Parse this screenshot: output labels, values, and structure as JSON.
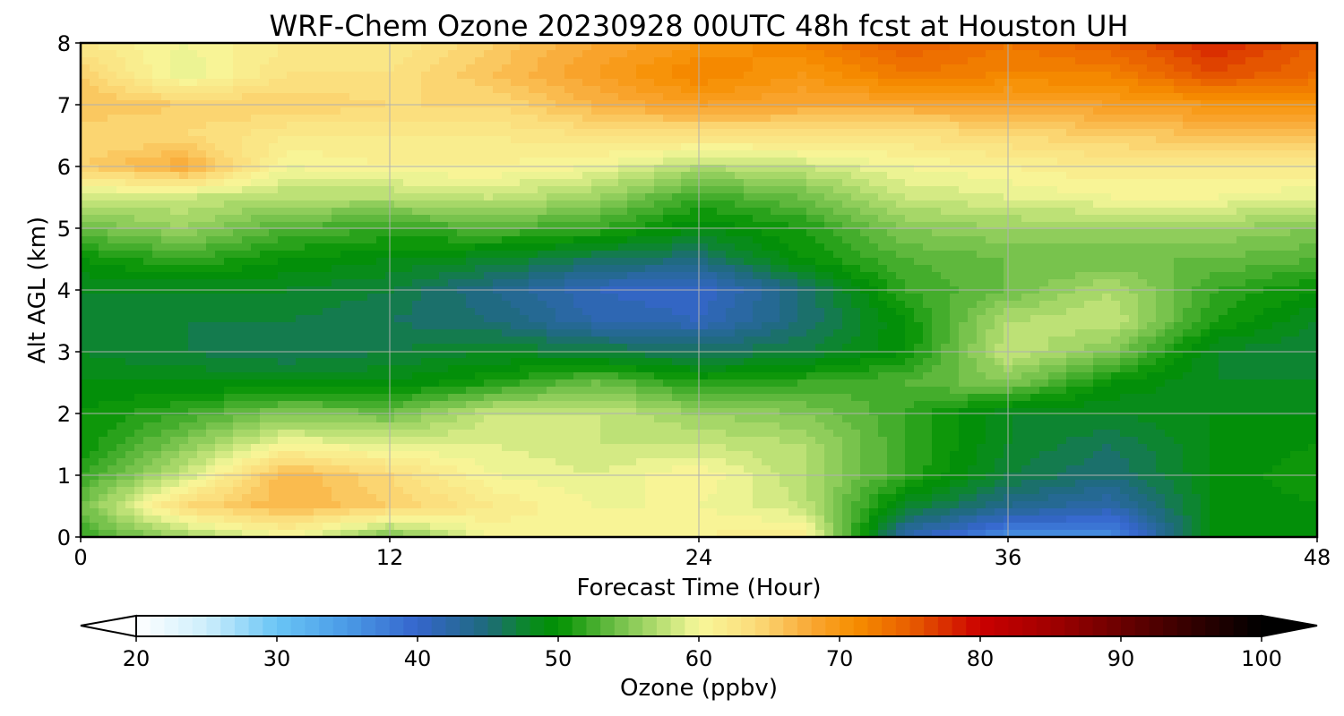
{
  "chart_data": {
    "type": "heatmap",
    "title": "WRF-Chem Ozone  20230928 00UTC 48h fcst at Houston UH",
    "xlabel": "Forecast Time (Hour)",
    "ylabel": "Alt AGL (km)",
    "xlim": [
      0,
      48
    ],
    "ylim": [
      0,
      8
    ],
    "x_ticks": [
      "0",
      "12",
      "24",
      "36",
      "48"
    ],
    "y_ticks": [
      "0",
      "1",
      "2",
      "3",
      "4",
      "5",
      "6",
      "7",
      "8"
    ],
    "grid": true,
    "x_hours": [
      0,
      4,
      8,
      12,
      16,
      20,
      24,
      28,
      32,
      36,
      40,
      44,
      48
    ],
    "y_km": [
      0,
      0.5,
      1,
      1.5,
      2,
      2.5,
      3,
      3.5,
      4,
      4.5,
      5,
      5.5,
      6,
      6.5,
      7,
      7.5,
      8
    ],
    "ozone_ppbv": [
      [
        52,
        56,
        60,
        54,
        60,
        61,
        61,
        62,
        42,
        36,
        36,
        50,
        50
      ],
      [
        54,
        64,
        67,
        65,
        62,
        60,
        60,
        58,
        48,
        44,
        42,
        49,
        50
      ],
      [
        52,
        58,
        67,
        64,
        60,
        59,
        61,
        57,
        52,
        47,
        45,
        49,
        51
      ],
      [
        50,
        55,
        60,
        59,
        59,
        58,
        58,
        57,
        52,
        48,
        46,
        49,
        50
      ],
      [
        50,
        52,
        55,
        54,
        58,
        58,
        56,
        55,
        52,
        48,
        48,
        49,
        49
      ],
      [
        49,
        49,
        49,
        49,
        51,
        54,
        51,
        52,
        53,
        55,
        50,
        48,
        48
      ],
      [
        48,
        47,
        46,
        47,
        48,
        47,
        46,
        47,
        50,
        58,
        55,
        48,
        47
      ],
      [
        48,
        47,
        47,
        46,
        45,
        42,
        41,
        45,
        50,
        57,
        58,
        51,
        48
      ],
      [
        48,
        48,
        48,
        47,
        44,
        41,
        40,
        45,
        52,
        54,
        57,
        52,
        50
      ],
      [
        50,
        52,
        50,
        49,
        48,
        46,
        45,
        50,
        53,
        54,
        54,
        54,
        53
      ],
      [
        54,
        56,
        53,
        52,
        53,
        52,
        49,
        51,
        55,
        56,
        56,
        56,
        55
      ],
      [
        58,
        58,
        57,
        57,
        58,
        56,
        52,
        54,
        58,
        59,
        60,
        60,
        59
      ],
      [
        65,
        68,
        60,
        61,
        61,
        60,
        57,
        58,
        60,
        61,
        62,
        62,
        62
      ],
      [
        64,
        64,
        62,
        62,
        62,
        63,
        63,
        63,
        63,
        64,
        65,
        66,
        66
      ],
      [
        66,
        65,
        65,
        64,
        64,
        67,
        69,
        68,
        68,
        68,
        69,
        70,
        70
      ],
      [
        65,
        59,
        63,
        63,
        66,
        69,
        72,
        70,
        73,
        72,
        72,
        76,
        74
      ],
      [
        62,
        60,
        62,
        62,
        65,
        68,
        70,
        72,
        75,
        73,
        75,
        78,
        75
      ]
    ],
    "colorbar": {
      "label": "Ozone  (ppbv)",
      "min": 20,
      "max": 100,
      "step": 1,
      "extend": "both",
      "ticks": [
        "20",
        "30",
        "40",
        "50",
        "60",
        "70",
        "80",
        "90",
        "100"
      ],
      "stops": [
        {
          "v": 20,
          "c": "#ffffff"
        },
        {
          "v": 25,
          "c": "#cdeefc"
        },
        {
          "v": 30,
          "c": "#69c5f5"
        },
        {
          "v": 35,
          "c": "#4a9ae6"
        },
        {
          "v": 40,
          "c": "#3565cc"
        },
        {
          "v": 45,
          "c": "#1e6b7a"
        },
        {
          "v": 48,
          "c": "#0a8a22"
        },
        {
          "v": 50,
          "c": "#019101"
        },
        {
          "v": 54,
          "c": "#6cbe46"
        },
        {
          "v": 58,
          "c": "#c8e67d"
        },
        {
          "v": 60,
          "c": "#f8f79a"
        },
        {
          "v": 64,
          "c": "#fbdc7a"
        },
        {
          "v": 68,
          "c": "#f9a734"
        },
        {
          "v": 71,
          "c": "#f78f00"
        },
        {
          "v": 75,
          "c": "#e85e00"
        },
        {
          "v": 80,
          "c": "#cb0000"
        },
        {
          "v": 85,
          "c": "#a10000"
        },
        {
          "v": 90,
          "c": "#6a0000"
        },
        {
          "v": 95,
          "c": "#330000"
        },
        {
          "v": 100,
          "c": "#000000"
        }
      ]
    }
  }
}
